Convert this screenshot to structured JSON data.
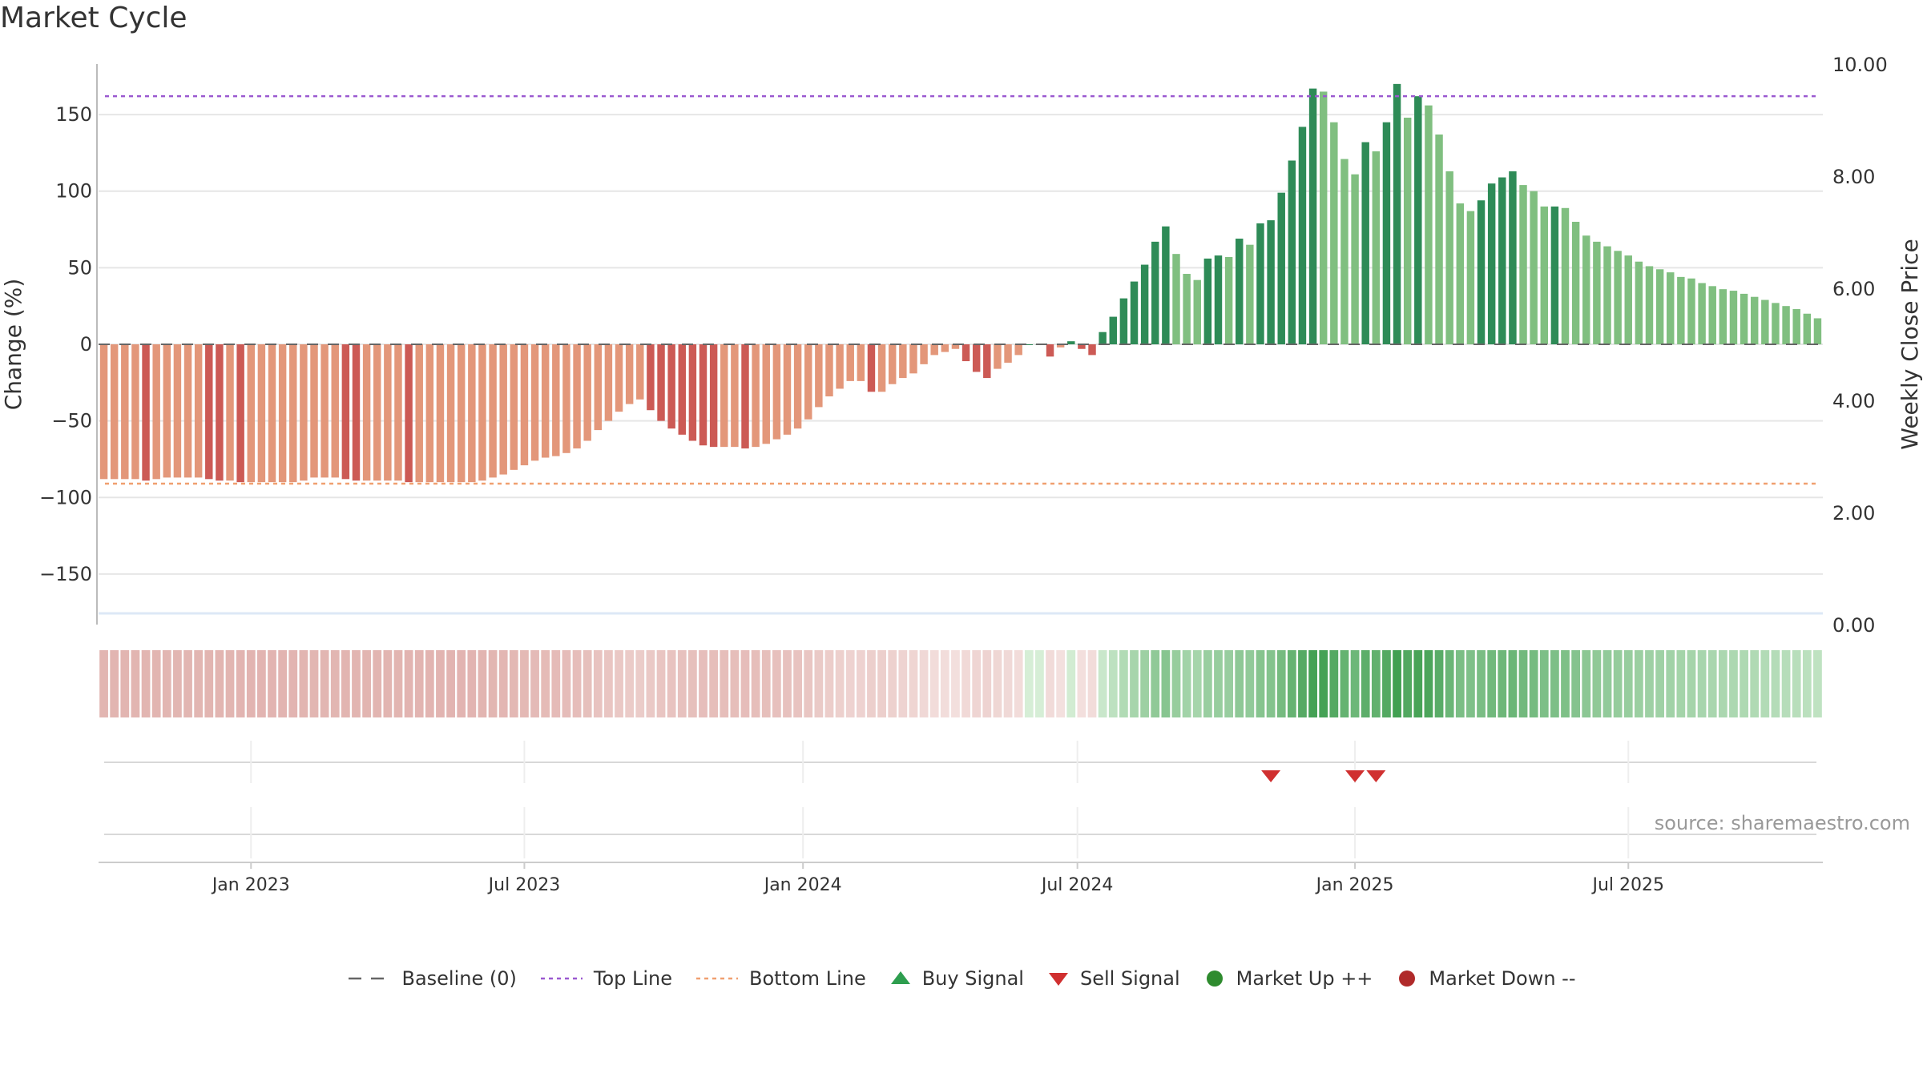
{
  "page": {
    "title": "Market Cycle",
    "source": "source: sharemaestro.com"
  },
  "legend": [
    {
      "label": "Baseline (0)",
      "icon": "dash-line-icon",
      "color": "#666666"
    },
    {
      "label": "Top Line",
      "icon": "dotted-line-icon",
      "color": "#9b59d0"
    },
    {
      "label": "Bottom Line",
      "icon": "dotted-line-icon",
      "color": "#f0a070"
    },
    {
      "label": "Buy Signal",
      "icon": "triangle-up-icon",
      "color": "#2e9e4f"
    },
    {
      "label": "Sell Signal",
      "icon": "triangle-down-icon",
      "color": "#d03030"
    },
    {
      "label": "Market Up ++",
      "icon": "circle-icon",
      "color": "#2e8b2e"
    },
    {
      "label": "Market Down --",
      "icon": "circle-icon",
      "color": "#b02a2a"
    }
  ],
  "chart_data": {
    "type": "bar",
    "title": "Market Cycle",
    "ylabel": "Change (%)",
    "y2label": "Weekly Close Price",
    "ylim": [
      -183,
      183
    ],
    "y_ticks": [
      150,
      100,
      50,
      0,
      -50,
      -100,
      -150
    ],
    "y_tick_labels": [
      "150",
      "100",
      "50",
      "0",
      "−50",
      "−100",
      "−150"
    ],
    "y2lim": [
      0,
      10
    ],
    "y2_ticks": [
      10,
      8,
      6,
      4,
      2,
      0
    ],
    "y2_tick_labels": [
      "10.00",
      "8.00",
      "6.00",
      "4.00",
      "2.00",
      "0.00"
    ],
    "top_line": 162,
    "bottom_line": -91,
    "x_tick_labels": [
      {
        "label": "Jan 2023",
        "week": 14
      },
      {
        "label": "Jul 2023",
        "week": 40
      },
      {
        "label": "Jan 2024",
        "week": 66.5
      },
      {
        "label": "Jul 2024",
        "week": 92.6
      },
      {
        "label": "Jan 2025",
        "week": 119
      },
      {
        "label": "Jul 2025",
        "week": 145
      }
    ],
    "series": [
      {
        "values": [
          -88,
          -88,
          -88,
          -88,
          -89,
          -88,
          -87,
          -87,
          -87,
          -87,
          -88,
          -89,
          -89,
          -90,
          -90,
          -90,
          -90,
          -90,
          -90,
          -89,
          -87,
          -87,
          -87,
          -88,
          -89,
          -89,
          -89,
          -89,
          -89,
          -90,
          -90,
          -90,
          -90,
          -90,
          -90,
          -90,
          -89,
          -87,
          -85,
          -82,
          -79,
          -76,
          -74,
          -73,
          -71,
          -68,
          -63,
          -56,
          -50,
          -44,
          -39,
          -36,
          -43,
          -50,
          -55,
          -59,
          -63,
          -66,
          -67,
          -67,
          -67,
          -68,
          -67,
          -65,
          -62,
          -59,
          -55,
          -49,
          -41,
          -34,
          -29,
          -24,
          -24,
          -31,
          -31,
          -26,
          -22,
          -19,
          -13,
          -7,
          -5,
          -3,
          -11,
          -18,
          -22,
          -16,
          -12,
          -7,
          0,
          0,
          -8,
          -2,
          2,
          -3,
          -7,
          8,
          18,
          30,
          41,
          52,
          67,
          77,
          59,
          46,
          42,
          56,
          58,
          57,
          69,
          65,
          79,
          81,
          99,
          120,
          142,
          167,
          165,
          145,
          121,
          111,
          132,
          126,
          145,
          170,
          148,
          162,
          156,
          137,
          113,
          92,
          87,
          94,
          105,
          109,
          113,
          104,
          100,
          90,
          90,
          89,
          80,
          71,
          67,
          64,
          61,
          58,
          54,
          51,
          49,
          47,
          44,
          43,
          40,
          38,
          36,
          35,
          33,
          31,
          29,
          27,
          25,
          23,
          20,
          17
        ]
      }
    ],
    "sell_signal_weeks": [
      111,
      119,
      121
    ],
    "buy_signal_weeks": []
  }
}
